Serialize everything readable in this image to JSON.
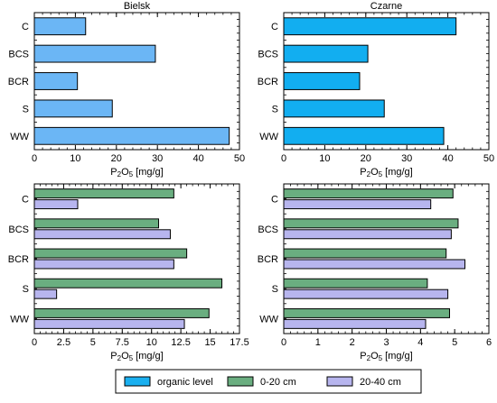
{
  "chart_data": [
    {
      "type": "bar",
      "orientation": "horizontal",
      "title": "Bielsk",
      "xlabel_main": "P",
      "xlabel_sub1": "2",
      "xlabel_mid": "O",
      "xlabel_sub2": "5",
      "xlabel_rest": " [mg/g]",
      "categories": [
        "C",
        "BCS",
        "BCR",
        "S",
        "WW"
      ],
      "xlim": [
        0,
        50
      ],
      "xticks": [
        0,
        10,
        20,
        30,
        40,
        50
      ],
      "xtick_labels": [
        "0",
        "10",
        "20",
        "30",
        "40",
        "50"
      ],
      "series": [
        {
          "key": "organic",
          "values": [
            12.5,
            29.5,
            10.5,
            19,
            47.5
          ]
        }
      ]
    },
    {
      "type": "bar",
      "orientation": "horizontal",
      "title": "Czarne",
      "xlabel_main": "P",
      "xlabel_sub1": "2",
      "xlabel_mid": "O",
      "xlabel_sub2": "5",
      "xlabel_rest": " [mg/g]",
      "categories": [
        "C",
        "BCS",
        "BCR",
        "S",
        "WW"
      ],
      "xlim": [
        0,
        50
      ],
      "xticks": [
        0,
        10,
        20,
        30,
        40,
        50
      ],
      "xtick_labels": [
        "0",
        "10",
        "20",
        "30",
        "40",
        "50"
      ],
      "series": [
        {
          "key": "organic",
          "values": [
            42,
            20.5,
            18.5,
            24.5,
            39
          ]
        }
      ]
    },
    {
      "type": "bar",
      "orientation": "horizontal",
      "title": "",
      "xlabel_main": "P",
      "xlabel_sub1": "2",
      "xlabel_mid": "O",
      "xlabel_sub2": "5",
      "xlabel_rest": " [mg/g]",
      "categories": [
        "C",
        "BCS",
        "BCR",
        "S",
        "WW"
      ],
      "xlim": [
        0,
        17.5
      ],
      "xticks": [
        0,
        2.5,
        5,
        7.5,
        10,
        12.5,
        15,
        17.5
      ],
      "xtick_labels": [
        "0",
        "2.5",
        "5",
        "7.5",
        "10",
        "12.5",
        "15",
        "17.5"
      ],
      "series": [
        {
          "key": "0-20",
          "values": [
            11.9,
            10.6,
            13,
            16,
            14.9
          ]
        },
        {
          "key": "20-40",
          "values": [
            3.7,
            11.6,
            11.9,
            1.9,
            12.8
          ]
        }
      ]
    },
    {
      "type": "bar",
      "orientation": "horizontal",
      "title": "",
      "xlabel_main": "P",
      "xlabel_sub1": "2",
      "xlabel_mid": "O",
      "xlabel_sub2": "5",
      "xlabel_rest": " [mg/g]",
      "categories": [
        "C",
        "BCS",
        "BCR",
        "S",
        "WW"
      ],
      "xlim": [
        0,
        6
      ],
      "xticks": [
        0,
        1,
        2,
        3,
        4,
        5,
        6
      ],
      "xtick_labels": [
        "0",
        "1",
        "2",
        "3",
        "4",
        "5",
        "6"
      ],
      "series": [
        {
          "key": "0-20",
          "values": [
            4.95,
            5.1,
            4.75,
            4.2,
            4.85
          ]
        },
        {
          "key": "20-40",
          "values": [
            4.3,
            4.9,
            5.3,
            4.8,
            4.15
          ]
        }
      ]
    }
  ],
  "legend": [
    {
      "key": "organic",
      "label": "organic level"
    },
    {
      "key": "0-20",
      "label": "0-20 cm"
    },
    {
      "key": "20-40",
      "label": "20-40 cm"
    }
  ],
  "colors": {
    "bielsk_organic": "#6bb6f5",
    "czarne_organic": "#12aef0",
    "0-20": "#6aae80",
    "20-40": "#b7b5ee",
    "legend_organic": "#1ab0f0"
  }
}
